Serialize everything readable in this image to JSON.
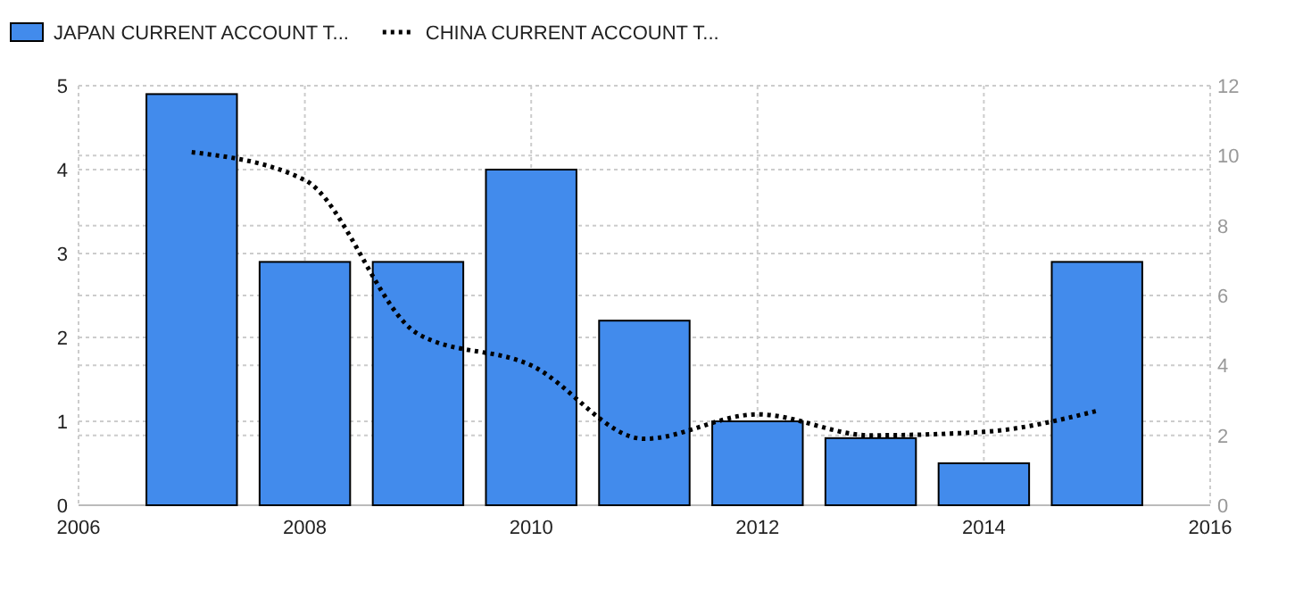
{
  "chart_data": {
    "type": "bar",
    "x": [
      2007,
      2008,
      2009,
      2010,
      2011,
      2012,
      2013,
      2014,
      2015
    ],
    "xlim": [
      2006,
      2016
    ],
    "xticks": [
      2006,
      2008,
      2010,
      2012,
      2014,
      2016
    ],
    "ylim": [
      0,
      5
    ],
    "yticks": [
      0,
      1,
      2,
      3,
      4,
      5
    ],
    "y2lim": [
      0,
      12
    ],
    "y2ticks": [
      0,
      2,
      4,
      6,
      8,
      10,
      12
    ],
    "grid": true,
    "legend": "top left",
    "series": [
      {
        "name": "JAPAN CURRENT ACCOUNT T...",
        "color": "#428bec",
        "values": [
          4.9,
          2.9,
          2.9,
          4.0,
          2.2,
          1.0,
          0.8,
          0.5,
          2.9
        ]
      },
      {
        "name": "CHINA CURRENT ACCOUNT T...",
        "type": "line",
        "axis": "y2",
        "color": "#000000",
        "line_style": "dotted",
        "values": [
          10.1,
          9.3,
          4.9,
          4.0,
          1.9,
          2.6,
          2.0,
          2.1,
          2.7
        ]
      }
    ]
  }
}
